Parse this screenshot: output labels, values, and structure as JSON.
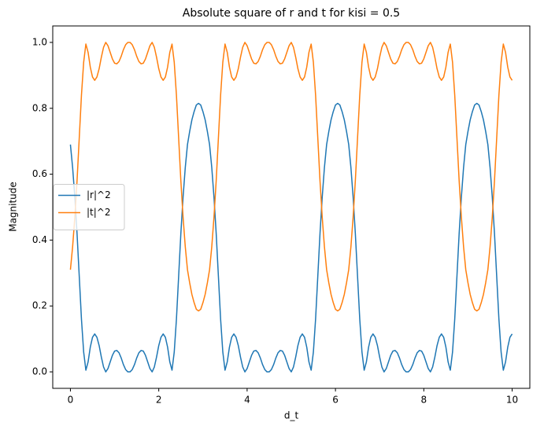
{
  "chart_data": {
    "type": "line",
    "title": "Absolute square of r and t for kisi = 0.5",
    "x_label": "d_t",
    "y_label": "Magnitude",
    "x": [
      0,
      0.05,
      0.1,
      0.15,
      0.2,
      0.25,
      0.3,
      0.35,
      0.4,
      0.45,
      0.5,
      0.55,
      0.6,
      0.65,
      0.7,
      0.75,
      0.8,
      0.85,
      0.9,
      0.95,
      1,
      1.05,
      1.1,
      1.15,
      1.2,
      1.25,
      1.3,
      1.35,
      1.4,
      1.45,
      1.5,
      1.55,
      1.6,
      1.65,
      1.7,
      1.75,
      1.8,
      1.85,
      1.9,
      1.95,
      2,
      2.05,
      2.1,
      2.15,
      2.2,
      2.25,
      2.3,
      2.35,
      2.4,
      2.45,
      2.5,
      2.55,
      2.6,
      2.65,
      2.7,
      2.75,
      2.8,
      2.85,
      2.9,
      2.95,
      3,
      3.05,
      3.1,
      3.15,
      3.2,
      3.25,
      3.3,
      3.35,
      3.4,
      3.45,
      3.5,
      3.55,
      3.6,
      3.65,
      3.7,
      3.75,
      3.8,
      3.85,
      3.9,
      3.95,
      4,
      4.05,
      4.1,
      4.15,
      4.2,
      4.25,
      4.3,
      4.35,
      4.4,
      4.45,
      4.5,
      4.55,
      4.6,
      4.65,
      4.7,
      4.75,
      4.8,
      4.85,
      4.9,
      4.95,
      5,
      5.05,
      5.1,
      5.15,
      5.2,
      5.25,
      5.3,
      5.35,
      5.4,
      5.45,
      5.5,
      5.55,
      5.6,
      5.65,
      5.7,
      5.75,
      5.8,
      5.85,
      5.9,
      5.95,
      6,
      6.05,
      6.1,
      6.15,
      6.2,
      6.25,
      6.3,
      6.35,
      6.4,
      6.45,
      6.5,
      6.55,
      6.6,
      6.65,
      6.7,
      6.75,
      6.8,
      6.85,
      6.9,
      6.95,
      7,
      7.05,
      7.1,
      7.15,
      7.2,
      7.25,
      7.3,
      7.35,
      7.4,
      7.45,
      7.5,
      7.55,
      7.6,
      7.65,
      7.7,
      7.75,
      7.8,
      7.85,
      7.9,
      7.95,
      8,
      8.05,
      8.1,
      8.15,
      8.2,
      8.25,
      8.3,
      8.35,
      8.4,
      8.45,
      8.5,
      8.55,
      8.6,
      8.65,
      8.7,
      8.75,
      8.8,
      8.85,
      8.9,
      8.95,
      9,
      9.05,
      9.1,
      9.15,
      9.2,
      9.25,
      9.3,
      9.35,
      9.4,
      9.45,
      9.5,
      9.55,
      9.6,
      9.65,
      9.7,
      9.75,
      9.8,
      9.85,
      9.9,
      9.95,
      10
    ],
    "series": [
      {
        "name": "|r|^2",
        "color": "#1f77b4",
        "values": [
          0.69,
          0.62,
          0.53,
          0.42,
          0.29,
          0.16,
          0.06,
          0.005,
          0.03,
          0.075,
          0.105,
          0.115,
          0.105,
          0.08,
          0.045,
          0.015,
          0,
          0.01,
          0.03,
          0.05,
          0.063,
          0.065,
          0.058,
          0.042,
          0.022,
          0.007,
          0,
          0,
          0.007,
          0.022,
          0.042,
          0.058,
          0.065,
          0.063,
          0.05,
          0.03,
          0.01,
          0,
          0.015,
          0.045,
          0.08,
          0.105,
          0.115,
          0.105,
          0.075,
          0.03,
          0.005,
          0.06,
          0.16,
          0.29,
          0.42,
          0.53,
          0.62,
          0.69,
          0.73,
          0.765,
          0.79,
          0.81,
          0.815,
          0.81,
          0.79,
          0.765,
          0.73,
          0.69,
          0.62,
          0.53,
          0.42,
          0.29,
          0.16,
          0.06,
          0.005,
          0.03,
          0.075,
          0.105,
          0.115,
          0.105,
          0.08,
          0.045,
          0.015,
          0,
          0.01,
          0.03,
          0.05,
          0.063,
          0.065,
          0.058,
          0.042,
          0.022,
          0.007,
          0,
          0,
          0.007,
          0.022,
          0.042,
          0.058,
          0.065,
          0.063,
          0.05,
          0.03,
          0.01,
          0,
          0.015,
          0.045,
          0.08,
          0.105,
          0.115,
          0.105,
          0.075,
          0.03,
          0.005,
          0.06,
          0.16,
          0.29,
          0.42,
          0.53,
          0.62,
          0.69,
          0.73,
          0.765,
          0.79,
          0.81,
          0.815,
          0.81,
          0.79,
          0.765,
          0.73,
          0.69,
          0.62,
          0.53,
          0.42,
          0.29,
          0.16,
          0.06,
          0.005,
          0.03,
          0.075,
          0.105,
          0.115,
          0.105,
          0.08,
          0.045,
          0.015,
          0,
          0.01,
          0.03,
          0.05,
          0.063,
          0.065,
          0.058,
          0.042,
          0.022,
          0.007,
          0,
          0,
          0.007,
          0.022,
          0.042,
          0.058,
          0.065,
          0.063,
          0.05,
          0.03,
          0.01,
          0,
          0.015,
          0.045,
          0.08,
          0.105,
          0.115,
          0.105,
          0.075,
          0.03,
          0.005,
          0.06,
          0.16,
          0.29,
          0.42,
          0.53,
          0.62,
          0.69,
          0.73,
          0.765,
          0.79,
          0.81,
          0.815,
          0.81,
          0.79,
          0.765,
          0.73,
          0.69,
          0.62,
          0.53,
          0.42,
          0.29,
          0.16,
          0.06,
          0.005,
          0.03,
          0.075,
          0.105,
          0.115
        ]
      },
      {
        "name": "|t|^2",
        "color": "#ff7f0e",
        "values": [
          0.31,
          0.38,
          0.47,
          0.58,
          0.71,
          0.84,
          0.94,
          0.995,
          0.97,
          0.925,
          0.895,
          0.885,
          0.895,
          0.92,
          0.955,
          0.985,
          1,
          0.99,
          0.97,
          0.95,
          0.937,
          0.935,
          0.942,
          0.958,
          0.978,
          0.993,
          1,
          1,
          0.993,
          0.978,
          0.958,
          0.942,
          0.935,
          0.937,
          0.95,
          0.97,
          0.99,
          1,
          0.985,
          0.955,
          0.92,
          0.895,
          0.885,
          0.895,
          0.925,
          0.97,
          0.995,
          0.94,
          0.84,
          0.71,
          0.58,
          0.47,
          0.38,
          0.31,
          0.27,
          0.235,
          0.21,
          0.19,
          0.185,
          0.19,
          0.21,
          0.235,
          0.27,
          0.31,
          0.38,
          0.47,
          0.58,
          0.71,
          0.84,
          0.94,
          0.995,
          0.97,
          0.925,
          0.895,
          0.885,
          0.895,
          0.92,
          0.955,
          0.985,
          1,
          0.99,
          0.97,
          0.95,
          0.937,
          0.935,
          0.942,
          0.958,
          0.978,
          0.993,
          1,
          1,
          0.993,
          0.978,
          0.958,
          0.942,
          0.935,
          0.937,
          0.95,
          0.97,
          0.99,
          1,
          0.985,
          0.955,
          0.92,
          0.895,
          0.885,
          0.895,
          0.925,
          0.97,
          0.995,
          0.94,
          0.84,
          0.71,
          0.58,
          0.47,
          0.38,
          0.31,
          0.27,
          0.235,
          0.21,
          0.19,
          0.185,
          0.19,
          0.21,
          0.235,
          0.27,
          0.31,
          0.38,
          0.47,
          0.58,
          0.71,
          0.84,
          0.94,
          0.995,
          0.97,
          0.925,
          0.895,
          0.885,
          0.895,
          0.92,
          0.955,
          0.985,
          1,
          0.99,
          0.97,
          0.95,
          0.937,
          0.935,
          0.942,
          0.958,
          0.978,
          0.993,
          1,
          1,
          0.993,
          0.978,
          0.958,
          0.942,
          0.935,
          0.937,
          0.95,
          0.97,
          0.99,
          1,
          0.985,
          0.955,
          0.92,
          0.895,
          0.885,
          0.895,
          0.925,
          0.97,
          0.995,
          0.94,
          0.84,
          0.71,
          0.58,
          0.47,
          0.38,
          0.31,
          0.27,
          0.235,
          0.21,
          0.19,
          0.185,
          0.19,
          0.21,
          0.235,
          0.27,
          0.31,
          0.38,
          0.47,
          0.58,
          0.71,
          0.84,
          0.94,
          0.995,
          0.97,
          0.925,
          0.895,
          0.885
        ]
      }
    ],
    "xlim": [
      -0.4,
      10.4
    ],
    "xticks": [
      0,
      2,
      4,
      6,
      8,
      10
    ],
    "ylim": [
      -0.05,
      1.05
    ],
    "yticks": [
      {
        "value": 0,
        "label": "0.0"
      },
      {
        "value": 0.2,
        "label": "0.2"
      },
      {
        "value": 0.4,
        "label": "0.4"
      },
      {
        "value": 0.6,
        "label": "0.6"
      },
      {
        "value": 0.8,
        "label": "0.8"
      },
      {
        "value": 1,
        "label": "1.0"
      }
    ],
    "grid": false,
    "legend": "center left"
  }
}
